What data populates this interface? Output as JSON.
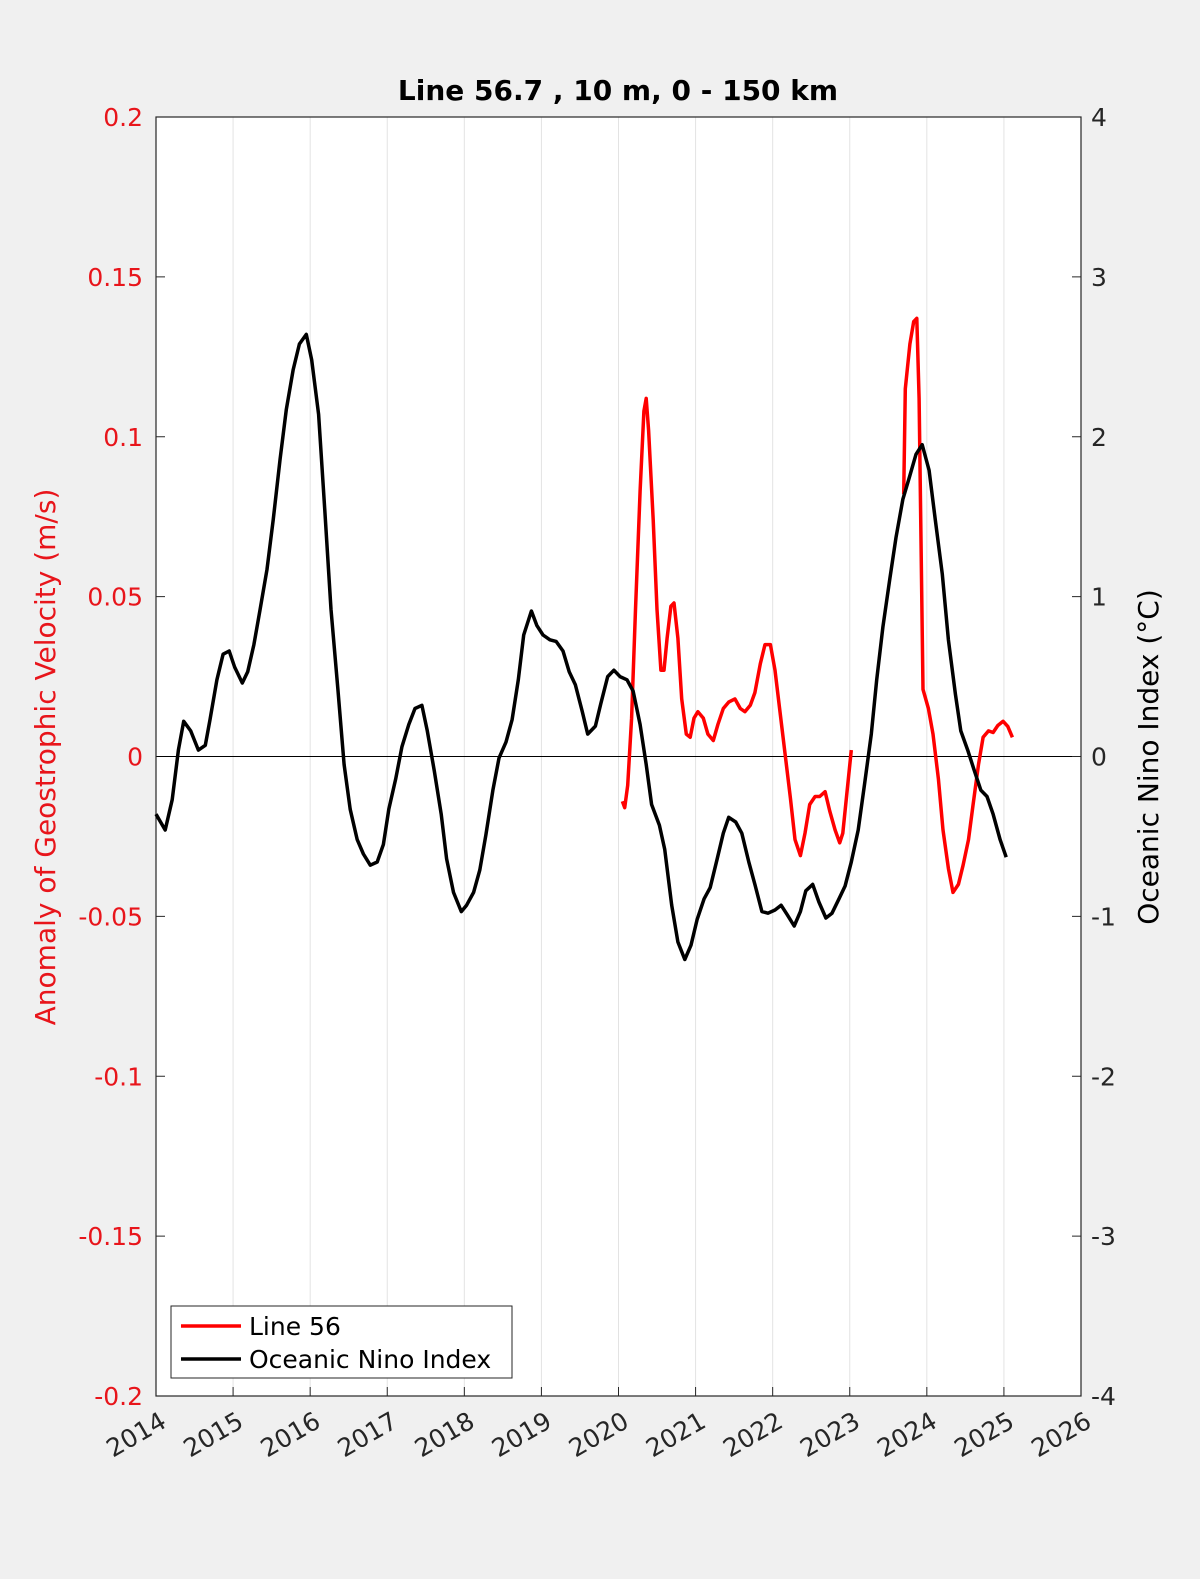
{
  "chart_data": {
    "type": "line",
    "title": "Line 56.7 , 10 m, 0 - 150 km",
    "y_label": "Anomaly of Geostrophic Velocity (m/s)",
    "y2_label": "Oceanic Nino Index (°C)",
    "xlim": [
      2014,
      2026
    ],
    "xticks": [
      2014,
      2015,
      2016,
      2017,
      2018,
      2019,
      2020,
      2021,
      2022,
      2023,
      2024,
      2025,
      2026
    ],
    "ylim": [
      -0.2,
      0.2
    ],
    "yticks": [
      -0.2,
      -0.15,
      -0.1,
      -0.05,
      0,
      0.05,
      0.1,
      0.15,
      0.2
    ],
    "y2lim": [
      -4,
      4
    ],
    "y2ticks": [
      -4,
      -3,
      -2,
      -1,
      0,
      1,
      2,
      3,
      4
    ],
    "grid": true,
    "legend": "lower left",
    "y_label_color": "#e8151b",
    "series": [
      {
        "name": "Line 56",
        "color": "#ff0000",
        "x": [
          2020.05,
          2020.08,
          2020.12,
          2020.17,
          2020.22,
          2020.28,
          2020.33,
          2020.36,
          2020.39,
          2020.45,
          2020.5,
          2020.55,
          2020.59,
          2020.63,
          2020.68,
          2020.72,
          2020.77,
          2020.82,
          2020.88,
          2020.93,
          2020.98,
          2021.03,
          2021.1,
          2021.16,
          2021.23,
          2021.29,
          2021.36,
          2021.43,
          2021.51,
          2021.58,
          2021.64,
          2021.71,
          2021.77,
          2021.84,
          2021.9,
          2021.97,
          2022.03,
          2022.09,
          2022.16,
          2022.23,
          2022.29,
          2022.36,
          2022.42,
          2022.48,
          2022.55,
          2022.61,
          2022.68,
          2022.74,
          2022.81,
          2022.87,
          2022.91,
          2022.96,
          2023.02,
          2023.36,
          2023.7,
          2023.72,
          2023.78,
          2023.83,
          2023.87,
          2023.9,
          2023.95,
          2024.02,
          2024.08,
          2024.15,
          2024.21,
          2024.28,
          2024.34,
          2024.41,
          2024.47,
          2024.54,
          2024.6,
          2024.67,
          2024.73,
          2024.8,
          2024.86,
          2024.92,
          2024.99,
          2025.05,
          2025.11
        ],
        "values": [
          -0.014,
          -0.016,
          -0.009,
          0.012,
          0.046,
          0.083,
          0.108,
          0.112,
          0.102,
          0.074,
          0.046,
          0.027,
          0.027,
          0.037,
          0.047,
          0.048,
          0.037,
          0.018,
          0.007,
          0.006,
          0.012,
          0.014,
          0.012,
          0.007,
          0.005,
          0.01,
          0.015,
          0.017,
          0.018,
          0.015,
          0.014,
          0.016,
          0.02,
          0.029,
          0.035,
          0.035,
          0.027,
          0.015,
          0.001,
          -0.013,
          -0.026,
          -0.031,
          -0.024,
          -0.015,
          -0.0125,
          -0.0125,
          -0.011,
          -0.017,
          -0.023,
          -0.027,
          -0.024,
          -0.012,
          0.002,
          null,
          0.082,
          0.115,
          0.129,
          0.136,
          0.137,
          0.112,
          0.021,
          0.015,
          0.007,
          -0.007,
          -0.023,
          -0.035,
          -0.0425,
          -0.04,
          -0.034,
          -0.026,
          -0.015,
          -0.0025,
          0.006,
          0.008,
          0.0075,
          0.0097,
          0.011,
          0.0094,
          0.006
        ]
      },
      {
        "name": "Oceanic Nino Index",
        "color": "#000000",
        "axis": "y2",
        "x": [
          2014.0,
          2014.12,
          2014.21,
          2014.29,
          2014.36,
          2014.45,
          2014.55,
          2014.64,
          2014.7,
          2014.79,
          2014.87,
          2014.95,
          2015.02,
          2015.12,
          2015.19,
          2015.27,
          2015.35,
          2015.44,
          2015.52,
          2015.61,
          2015.69,
          2015.78,
          2015.86,
          2015.95,
          2016.02,
          2016.11,
          2016.19,
          2016.27,
          2016.36,
          2016.44,
          2016.52,
          2016.61,
          2016.69,
          2016.78,
          2016.87,
          2016.95,
          2017.02,
          2017.11,
          2017.19,
          2017.28,
          2017.36,
          2017.45,
          2017.52,
          2017.61,
          2017.7,
          2017.77,
          2017.86,
          2017.96,
          2018.03,
          2018.12,
          2018.2,
          2018.28,
          2018.37,
          2018.45,
          2018.54,
          2018.62,
          2018.7,
          2018.77,
          2018.87,
          2018.94,
          2019.02,
          2019.11,
          2019.19,
          2019.28,
          2019.36,
          2019.44,
          2019.53,
          2019.6,
          2019.7,
          2019.77,
          2019.86,
          2019.94,
          2020.02,
          2020.11,
          2020.19,
          2020.28,
          2020.36,
          2020.43,
          2020.53,
          2020.6,
          2020.69,
          2020.77,
          2020.86,
          2020.94,
          2021.02,
          2021.11,
          2021.19,
          2021.28,
          2021.36,
          2021.43,
          2021.52,
          2021.6,
          2021.69,
          2021.77,
          2021.86,
          2021.94,
          2022.03,
          2022.11,
          2022.19,
          2022.28,
          2022.36,
          2022.43,
          2022.52,
          2022.6,
          2022.69,
          2022.77,
          2022.86,
          2022.94,
          2023.02,
          2023.11,
          2023.19,
          2023.28,
          2023.35,
          2023.43,
          2023.52,
          2023.6,
          2023.69,
          2023.77,
          2023.86,
          2023.94,
          2024.03,
          2024.11,
          2024.2,
          2024.28,
          2024.37,
          2024.44,
          2024.53,
          2024.61,
          2024.7,
          2024.78,
          2024.86,
          2024.95,
          2025.03
        ],
        "values": [
          -0.36,
          -0.46,
          -0.27,
          0.04,
          0.22,
          0.16,
          0.04,
          0.07,
          0.23,
          0.48,
          0.64,
          0.66,
          0.56,
          0.46,
          0.53,
          0.7,
          0.92,
          1.17,
          1.48,
          1.86,
          2.17,
          2.42,
          2.58,
          2.64,
          2.48,
          2.14,
          1.54,
          0.92,
          0.42,
          -0.05,
          -0.33,
          -0.52,
          -0.61,
          -0.68,
          -0.66,
          -0.55,
          -0.33,
          -0.14,
          0.06,
          0.2,
          0.3,
          0.32,
          0.16,
          -0.09,
          -0.36,
          -0.64,
          -0.85,
          -0.97,
          -0.93,
          -0.85,
          -0.71,
          -0.49,
          -0.21,
          -0.01,
          0.09,
          0.23,
          0.48,
          0.76,
          0.91,
          0.82,
          0.76,
          0.73,
          0.72,
          0.66,
          0.53,
          0.45,
          0.28,
          0.14,
          0.19,
          0.33,
          0.5,
          0.54,
          0.5,
          0.48,
          0.41,
          0.2,
          -0.05,
          -0.3,
          -0.43,
          -0.58,
          -0.93,
          -1.16,
          -1.27,
          -1.18,
          -1.02,
          -0.89,
          -0.82,
          -0.64,
          -0.48,
          -0.38,
          -0.41,
          -0.48,
          -0.66,
          -0.8,
          -0.97,
          -0.98,
          -0.96,
          -0.93,
          -0.99,
          -1.06,
          -0.97,
          -0.84,
          -0.8,
          -0.91,
          -1.01,
          -0.98,
          -0.89,
          -0.81,
          -0.66,
          -0.46,
          -0.18,
          0.14,
          0.48,
          0.81,
          1.11,
          1.37,
          1.61,
          1.74,
          1.89,
          1.95,
          1.79,
          1.48,
          1.14,
          0.73,
          0.39,
          0.16,
          0.04,
          -0.08,
          -0.21,
          -0.25,
          -0.36,
          -0.52,
          -0.63
        ]
      }
    ]
  }
}
